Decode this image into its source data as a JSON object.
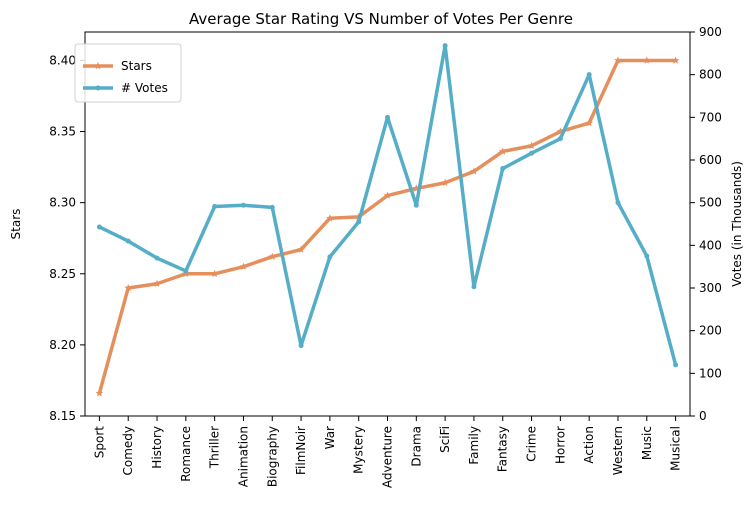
{
  "chart_data": {
    "type": "line",
    "title": "Average Star Rating VS Number of Votes Per Genre",
    "xlabel": "",
    "ylabel": "Stars",
    "y2label": "Votes (in Thousands)",
    "categories": [
      "Sport",
      "Comedy",
      "History",
      "Romance",
      "Thriller",
      "Animation",
      "Biography",
      "FilmNoir",
      "War",
      "Mystery",
      "Adventure",
      "Drama",
      "SciFi",
      "Family",
      "Fantasy",
      "Crime",
      "Horror",
      "Action",
      "Western",
      "Music",
      "Musical"
    ],
    "ylim": [
      8.15,
      8.42
    ],
    "yticks": [
      "8.15",
      "8.20",
      "8.25",
      "8.30",
      "8.35",
      "8.40"
    ],
    "y2lim": [
      0,
      900
    ],
    "y2ticks": [
      "0",
      "100",
      "200",
      "300",
      "400",
      "500",
      "600",
      "700",
      "800",
      "900"
    ],
    "grid": false,
    "legend_position": "top-left",
    "series": [
      {
        "name": "Stars",
        "axis": "left",
        "color": "#e58f5c",
        "marker": "star",
        "values": [
          8.166,
          8.24,
          8.243,
          8.25,
          8.25,
          8.255,
          8.262,
          8.267,
          8.289,
          8.29,
          8.305,
          8.31,
          8.314,
          8.322,
          8.336,
          8.34,
          8.35,
          8.356,
          8.4,
          8.4,
          8.4
        ]
      },
      {
        "name": "# Votes",
        "axis": "right",
        "color": "#55adc8",
        "marker": "dot",
        "values": [
          443,
          410,
          370,
          340,
          491,
          494,
          489,
          165,
          373,
          455,
          700,
          494,
          868,
          303,
          580,
          616,
          650,
          800,
          500,
          375,
          120
        ]
      }
    ]
  }
}
